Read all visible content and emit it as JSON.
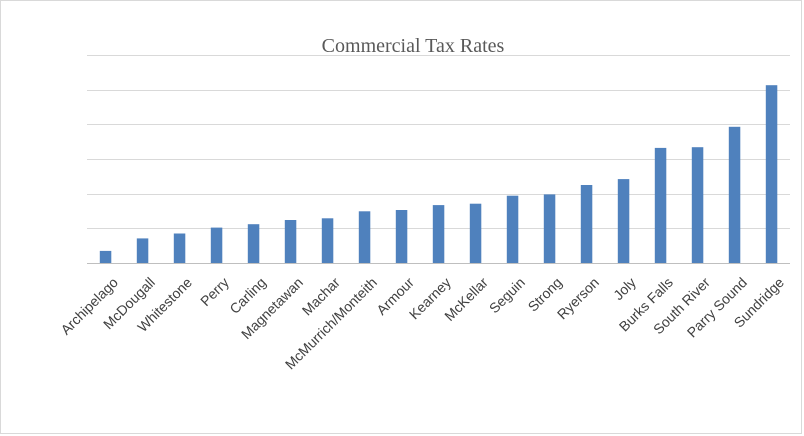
{
  "chart_data": {
    "type": "bar",
    "title": "Commercial Tax Rates",
    "xlabel": "",
    "ylabel": "",
    "categories": [
      "Archipelago",
      "McDougall",
      "Whitestone",
      "Perry",
      "Carling",
      "Magnetawan",
      "Machar",
      "McMurrich/Monteith",
      "Armour",
      "Kearney",
      "McKellar",
      "Seguin",
      "Strong",
      "Ryerson",
      "Joly",
      "Burks Falls",
      "South River",
      "Parry Sound",
      "Sundridge"
    ],
    "values": [
      0.35,
      0.71,
      0.85,
      1.02,
      1.12,
      1.24,
      1.29,
      1.49,
      1.53,
      1.67,
      1.71,
      1.94,
      1.98,
      2.25,
      2.42,
      3.32,
      3.34,
      3.93,
      5.13
    ],
    "ylim": [
      0,
      6
    ],
    "y_gridlines": [
      0,
      1,
      2,
      3,
      4,
      5,
      6
    ],
    "grid": true,
    "legend": "none",
    "bar_color": "#4f81bd",
    "y_tick_labels_shown": false
  }
}
